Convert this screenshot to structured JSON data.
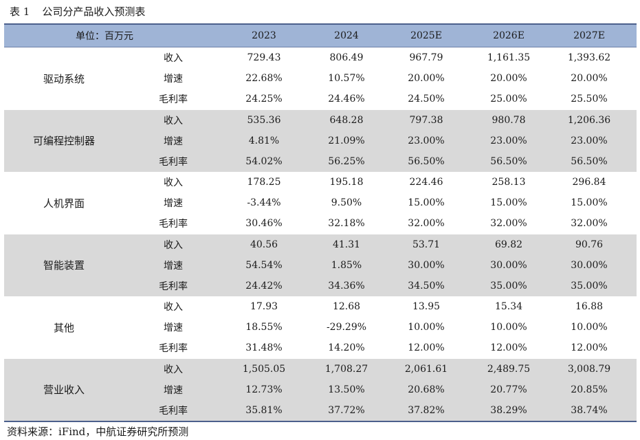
{
  "caption": {
    "number": "表 1",
    "title": "公司分产品收入预测表"
  },
  "header": {
    "unit": "单位：百万元",
    "years": [
      "2023",
      "2024",
      "2025E",
      "2026E",
      "2027E"
    ]
  },
  "groups": [
    {
      "name": "驱动系统",
      "rows": [
        {
          "metric": "收入",
          "values": [
            "729.43",
            "806.49",
            "967.79",
            "1,161.35",
            "1,393.62"
          ]
        },
        {
          "metric": "增速",
          "values": [
            "22.68%",
            "10.57%",
            "20.00%",
            "20.00%",
            "20.00%"
          ]
        },
        {
          "metric": "毛利率",
          "values": [
            "24.25%",
            "24.46%",
            "24.50%",
            "25.00%",
            "25.50%"
          ]
        }
      ]
    },
    {
      "name": "可编程控制器",
      "rows": [
        {
          "metric": "收入",
          "values": [
            "535.36",
            "648.28",
            "797.38",
            "980.78",
            "1,206.36"
          ]
        },
        {
          "metric": "增速",
          "values": [
            "4.81%",
            "21.09%",
            "23.00%",
            "23.00%",
            "23.00%"
          ]
        },
        {
          "metric": "毛利率",
          "values": [
            "54.02%",
            "56.25%",
            "56.50%",
            "56.50%",
            "56.50%"
          ]
        }
      ]
    },
    {
      "name": "人机界面",
      "rows": [
        {
          "metric": "收入",
          "values": [
            "178.25",
            "195.18",
            "224.46",
            "258.13",
            "296.84"
          ]
        },
        {
          "metric": "增速",
          "values": [
            "-3.44%",
            "9.50%",
            "15.00%",
            "15.00%",
            "15.00%"
          ]
        },
        {
          "metric": "毛利率",
          "values": [
            "30.46%",
            "32.18%",
            "32.00%",
            "32.00%",
            "32.00%"
          ]
        }
      ]
    },
    {
      "name": "智能装置",
      "rows": [
        {
          "metric": "收入",
          "values": [
            "40.56",
            "41.31",
            "53.71",
            "69.82",
            "90.76"
          ]
        },
        {
          "metric": "增速",
          "values": [
            "54.54%",
            "1.85%",
            "30.00%",
            "30.00%",
            "30.00%"
          ]
        },
        {
          "metric": "毛利率",
          "values": [
            "24.42%",
            "34.36%",
            "34.50%",
            "35.00%",
            "35.00%"
          ]
        }
      ]
    },
    {
      "name": "其他",
      "rows": [
        {
          "metric": "收入",
          "values": [
            "17.93",
            "12.68",
            "13.95",
            "15.34",
            "16.88"
          ]
        },
        {
          "metric": "增速",
          "values": [
            "18.55%",
            "-29.29%",
            "10.00%",
            "10.00%",
            "10.00%"
          ]
        },
        {
          "metric": "毛利率",
          "values": [
            "31.48%",
            "14.20%",
            "12.00%",
            "12.00%",
            "12.00%"
          ]
        }
      ]
    },
    {
      "name": "营业收入",
      "rows": [
        {
          "metric": "收入",
          "values": [
            "1,505.05",
            "1,708.27",
            "2,061.61",
            "2,489.75",
            "3,008.79"
          ]
        },
        {
          "metric": "增速",
          "values": [
            "12.73%",
            "13.50%",
            "20.68%",
            "20.77%",
            "20.85%"
          ]
        },
        {
          "metric": "毛利率",
          "values": [
            "35.81%",
            "37.72%",
            "37.82%",
            "38.29%",
            "38.74%"
          ]
        }
      ]
    }
  ],
  "source": "资料来源：iFind，中航证券研究所预测"
}
